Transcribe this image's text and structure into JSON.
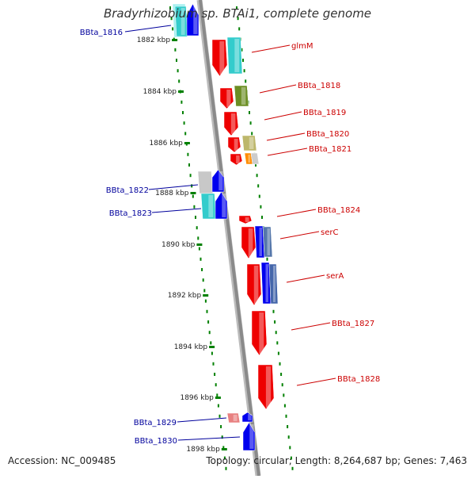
{
  "title": "Bradyrhizobium sp. BTAi1, complete genome",
  "footer": {
    "accession": "Accession: NC_009485",
    "summary": "Topology: circular; Length: 8,264,687 bp; Genes: 7,463"
  },
  "kbp_labels": [
    "1882 kbp",
    "1884 kbp",
    "1886 kbp",
    "1888 kbp",
    "1890 kbp",
    "1892 kbp",
    "1894 kbp",
    "1896 kbp",
    "1898 kbp"
  ],
  "left_genes": [
    "BBta_1816",
    "BBta_1822",
    "BBta_1823",
    "BBta_1829",
    "BBta_1830"
  ],
  "right_genes": [
    "glmM",
    "BBta_1818",
    "BBta_1819",
    "BBta_1820",
    "BBta_1821",
    "BBta_1824",
    "serC",
    "serA",
    "BBta_1827",
    "BBta_1828"
  ],
  "colors": {
    "left_label": "#00009c",
    "right_label": "#cc0000",
    "tick": "#008000",
    "gene_red": "#ee0000",
    "gene_blue": "#0000ee",
    "gene_cyan": "#33cccc",
    "gene_olive": "#6b8e23",
    "gene_khaki": "#bdb76b",
    "gene_orange": "#ff8c00",
    "gene_pink": "#e88080",
    "backbone": "#999999"
  }
}
